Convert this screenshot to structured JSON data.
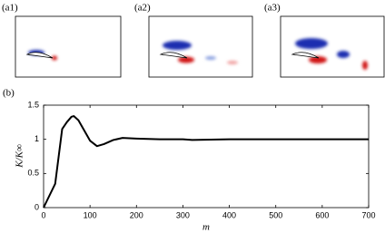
{
  "panels": [
    "(a1)",
    "(a2)",
    "(a3)"
  ],
  "chart_data": {
    "type": "line",
    "label": "(b)",
    "x_label": "m",
    "y_label": "K/K∞",
    "series": [
      {
        "color": "#000000",
        "x": [
          0,
          25,
          40,
          50,
          60,
          65,
          75,
          90,
          100,
          115,
          130,
          150,
          170,
          200,
          250,
          300,
          320,
          400,
          500,
          600,
          700
        ],
        "values": [
          0,
          0.35,
          1.15,
          1.25,
          1.33,
          1.34,
          1.28,
          1.1,
          0.98,
          0.9,
          0.93,
          0.99,
          1.02,
          1.01,
          1.0,
          1.0,
          0.99,
          1.0,
          1.0,
          1.0,
          1.0
        ]
      }
    ],
    "xlim": [
      0,
      700
    ],
    "xticks": [
      0,
      100,
      200,
      300,
      400,
      500,
      600,
      700
    ],
    "ylim": [
      0,
      1.5
    ],
    "yticks": [
      0,
      0.5,
      1,
      1.5
    ]
  }
}
